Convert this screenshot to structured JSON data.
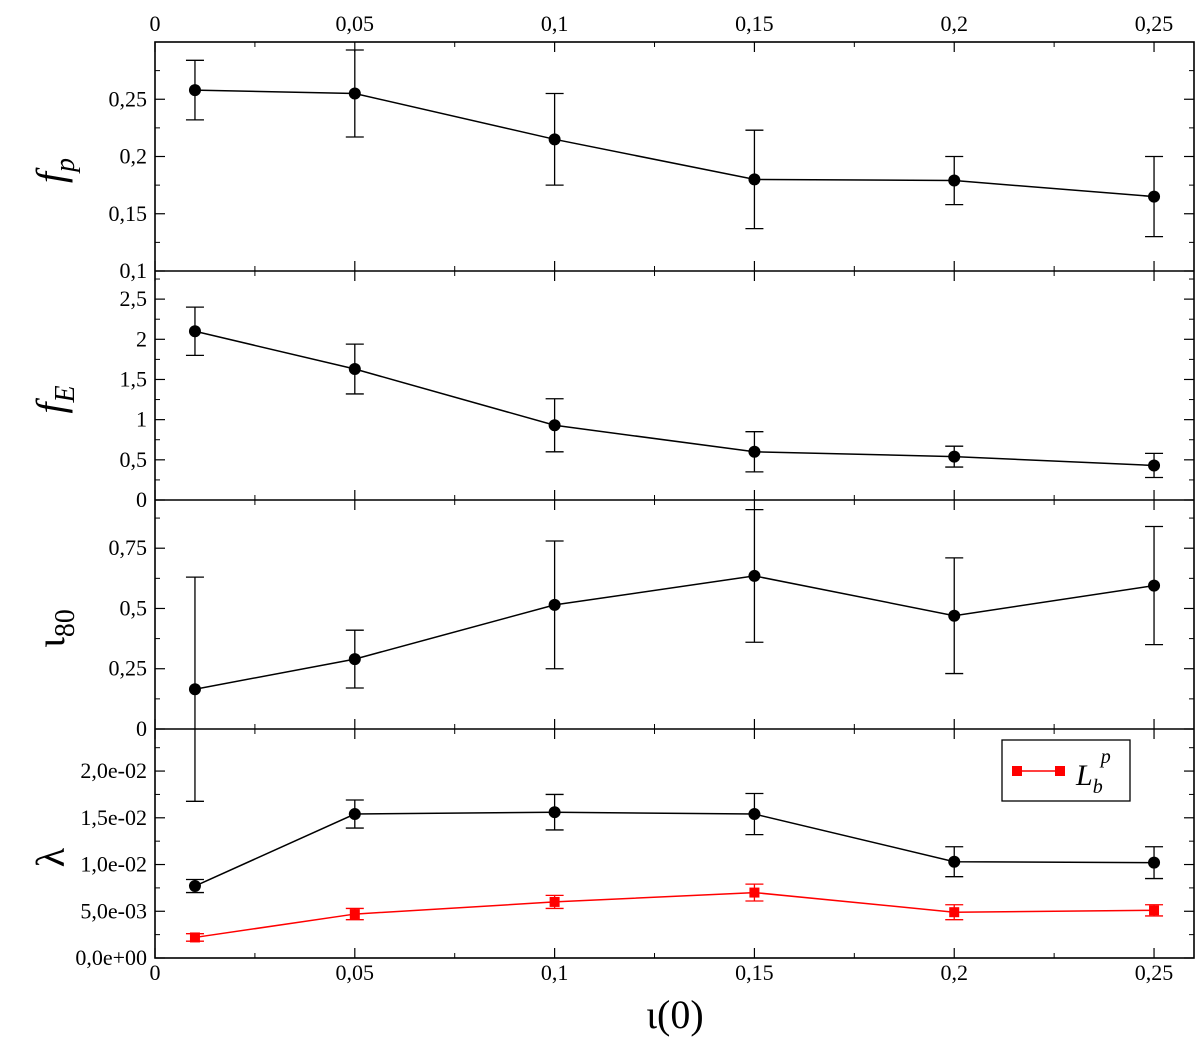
{
  "chart_data": {
    "type": "line",
    "x": [
      0.01,
      0.05,
      0.1,
      0.15,
      0.2,
      0.25
    ],
    "xlim": [
      0,
      0.26
    ],
    "xticks": [
      "0",
      "0,05",
      "0,1",
      "0,15",
      "0,2",
      "0,25"
    ],
    "xlabel": "ι(0)",
    "panels": [
      {
        "id": "fp",
        "ylabel_main": "f",
        "ylabel_sub": "p",
        "ylim": [
          0.1,
          0.3
        ],
        "yticks": [
          0.1,
          0.15,
          0.2,
          0.25
        ],
        "ytick_labels": [
          "0,1",
          "0,15",
          "0,2",
          "0,25"
        ],
        "series": [
          {
            "name": "f_p",
            "color": "#000000",
            "marker": "circle",
            "values": [
              0.258,
              0.255,
              0.215,
              0.18,
              0.179,
              0.165
            ],
            "errors": [
              0.026,
              0.038,
              0.04,
              0.043,
              0.021,
              0.035
            ]
          }
        ]
      },
      {
        "id": "fe",
        "ylabel_main": "f",
        "ylabel_sub": "E",
        "ylim": [
          0,
          2.85
        ],
        "yticks": [
          0,
          0.5,
          1,
          1.5,
          2,
          2.5
        ],
        "ytick_labels": [
          "0",
          "0,5",
          "1",
          "1,5",
          "2",
          "2,5"
        ],
        "series": [
          {
            "name": "f_E",
            "color": "#000000",
            "marker": "circle",
            "values": [
              2.1,
              1.63,
              0.93,
              0.6,
              0.54,
              0.43
            ],
            "errors": [
              0.3,
              0.31,
              0.33,
              0.25,
              0.13,
              0.15
            ]
          }
        ]
      },
      {
        "id": "i80",
        "ylabel_main": "ι",
        "ylabel_sub": "80",
        "ylim": [
          0,
          0.95
        ],
        "yticks": [
          0,
          0.25,
          0.5,
          0.75
        ],
        "ytick_labels": [
          "0",
          "0,25",
          "0,5",
          "0,75"
        ],
        "series": [
          {
            "name": "ι_80",
            "color": "#000000",
            "marker": "circle",
            "values": [
              0.165,
              0.29,
              0.515,
              0.635,
              0.47,
              0.595
            ],
            "errors": [
              0.465,
              0.12,
              0.265,
              0.275,
              0.24,
              0.245
            ]
          }
        ]
      },
      {
        "id": "lambda",
        "ylabel_main": "λ",
        "ylabel_sub": "",
        "ylim": [
          0,
          0.0245
        ],
        "yticks": [
          0,
          0.005,
          0.01,
          0.015,
          0.02
        ],
        "ytick_labels": [
          "0,0e+00",
          "5,0e-03",
          "1,0e-02",
          "1,5e-02",
          "2,0e-02"
        ],
        "legend": {
          "position": "top-right",
          "label_main": "L",
          "label_sub": "b",
          "label_sup": "p"
        },
        "series": [
          {
            "name": "λ",
            "color": "#000000",
            "marker": "circle",
            "values": [
              0.0077,
              0.0154,
              0.0156,
              0.0154,
              0.0103,
              0.0102
            ],
            "errors": [
              0.0007,
              0.0015,
              0.0019,
              0.0022,
              0.0016,
              0.0017
            ]
          },
          {
            "name": "L_b^p",
            "color": "#ff0000",
            "marker": "square",
            "in_legend": true,
            "values": [
              0.0022,
              0.0047,
              0.006,
              0.007,
              0.0049,
              0.0051
            ],
            "errors": [
              0.0004,
              0.0006,
              0.0007,
              0.0009,
              0.0008,
              0.0006
            ]
          }
        ]
      }
    ]
  }
}
